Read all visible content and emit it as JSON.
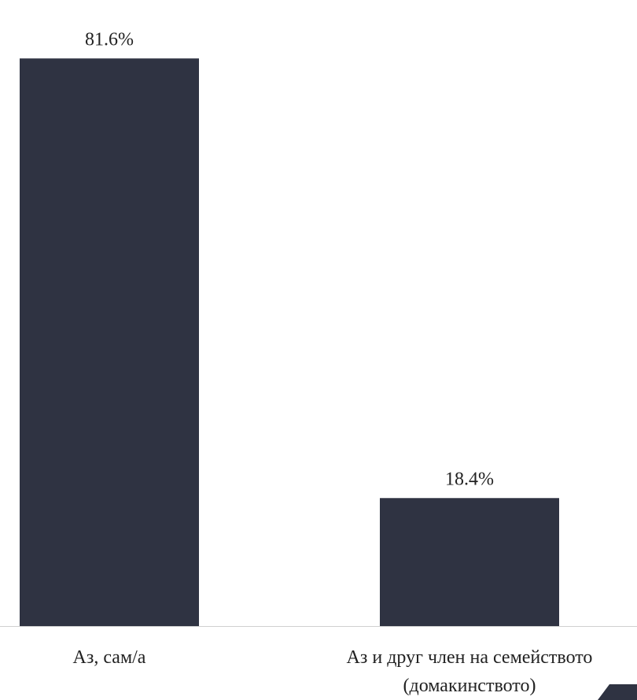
{
  "chart_data": {
    "type": "bar",
    "title": "",
    "xlabel": "",
    "ylabel": "",
    "categories": [
      [
        "Аз, сам/а"
      ],
      [
        "Аз и друг член на семейството",
        "(домакинството)"
      ]
    ],
    "values": [
      81.6,
      18.4
    ],
    "value_labels": [
      "81.6%",
      "18.4%"
    ],
    "ylim": [
      0,
      90
    ],
    "grid": false,
    "legend": "none",
    "colors": {
      "bar": "#2f3342",
      "axis": "#d0d0d0",
      "text": "#222222",
      "corner_accent": "#2f3342"
    }
  }
}
